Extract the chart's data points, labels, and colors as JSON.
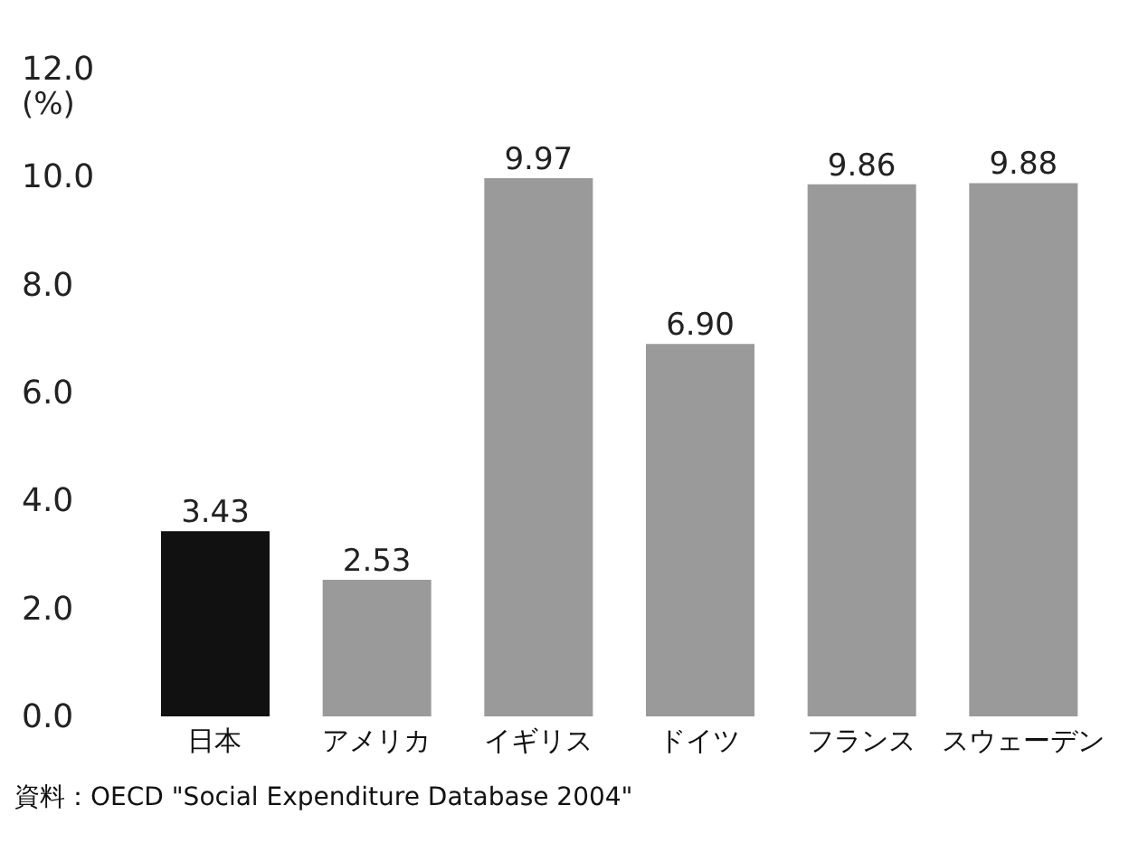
{
  "chart_data": {
    "type": "bar",
    "ylabel": "(%)",
    "categories": [
      "日本",
      "アメリカ",
      "イギリス",
      "ドイツ",
      "フランス",
      "スウェーデン"
    ],
    "values": [
      3.43,
      2.53,
      9.97,
      6.9,
      9.86,
      9.88
    ],
    "value_labels": [
      "3.43",
      "2.53",
      "9.97",
      "6.90",
      "9.86",
      "9.88"
    ],
    "colors": [
      "#111111",
      "#9a9a9a",
      "#9a9a9a",
      "#9a9a9a",
      "#9a9a9a",
      "#9a9a9a"
    ],
    "ylim": [
      0,
      12
    ],
    "yticks": [
      {
        "value": 0,
        "label": "0.0"
      },
      {
        "value": 2,
        "label": "2.0"
      },
      {
        "value": 4,
        "label": "4.0"
      },
      {
        "value": 6,
        "label": "6.0"
      },
      {
        "value": 8,
        "label": "8.0"
      },
      {
        "value": 10,
        "label": "10.0"
      },
      {
        "value": 12,
        "label": "12.0"
      }
    ],
    "grid": false,
    "annotations": [
      "資料：OECD \"Social Expenditure Database 2004\""
    ]
  }
}
